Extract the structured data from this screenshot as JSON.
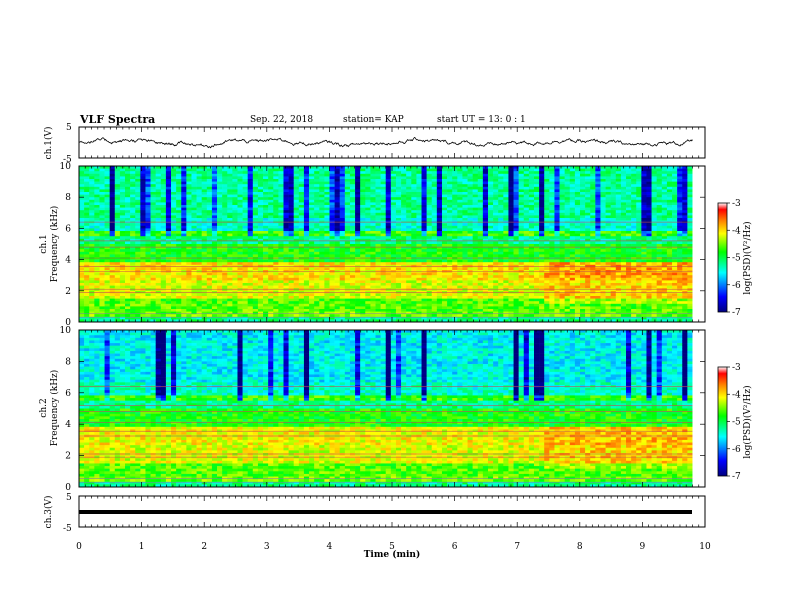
{
  "header": {
    "title": "VLF Spectra",
    "date": "Sep. 22, 2018",
    "station": "station= KAP",
    "start": "start  UT =  13: 0  : 1"
  },
  "chart_data": [
    {
      "type": "line",
      "name": "ch1-waveform",
      "ylabel": "ch.1(V)",
      "ylim": [
        -5,
        5
      ],
      "yticks": [
        "5",
        "-5"
      ],
      "note": "noisy waveform, amplitude roughly between -1.5 and 1.5 V, spanning 0 to 9.8 min"
    },
    {
      "type": "heatmap",
      "name": "ch1-spectrogram",
      "ylabel": "ch.1\nFrequency  (kHz)",
      "ylim": [
        0,
        10
      ],
      "yticks": [
        "10",
        "8",
        "6",
        "4",
        "2",
        "0"
      ],
      "xlim": [
        0,
        10
      ],
      "data_end_min": 9.8,
      "colorbar": {
        "label": "log(PSD)(V²/Hz)",
        "range": [
          -7,
          -3
        ],
        "ticks": [
          "-3",
          "-4",
          "-5",
          "-6",
          "-7"
        ]
      }
    },
    {
      "type": "heatmap",
      "name": "ch2-spectrogram",
      "ylabel": "ch.2\nFrequency  (kHz)",
      "ylim": [
        0,
        10
      ],
      "yticks": [
        "10",
        "8",
        "6",
        "4",
        "2",
        "0"
      ],
      "xlim": [
        0,
        10
      ],
      "data_end_min": 9.8,
      "colorbar": {
        "label": "log(PSD)(V²/Hz)",
        "range": [
          -7,
          -3
        ],
        "ticks": [
          "-3",
          "-4",
          "-5",
          "-6",
          "-7"
        ]
      }
    },
    {
      "type": "line",
      "name": "ch3-waveform",
      "ylabel": "ch.3(V)",
      "ylim": [
        -5,
        5
      ],
      "yticks": [
        "5",
        "-5"
      ],
      "constant_value": 0,
      "note": "flat thick line near 0 V"
    }
  ],
  "xaxis": {
    "label": "Time  (min)",
    "range": [
      0,
      10
    ],
    "ticks": [
      "0",
      "1",
      "2",
      "3",
      "4",
      "5",
      "6",
      "7",
      "8",
      "9",
      "10"
    ]
  },
  "colors": {
    "scale": [
      "#00007f",
      "#0000ff",
      "#00ffff",
      "#00ff00",
      "#ffff00",
      "#ff7f00",
      "#ff0000",
      "#7f0000"
    ]
  }
}
